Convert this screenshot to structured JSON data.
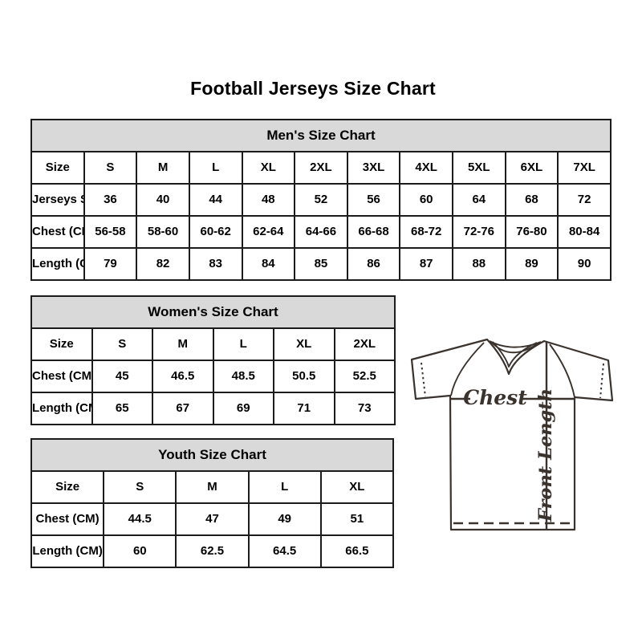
{
  "page": {
    "title": "Football Jerseys Size Chart"
  },
  "tables": [
    {
      "title": "Men's Size Chart",
      "rows": [
        [
          "Size",
          "S",
          "M",
          "L",
          "XL",
          "2XL",
          "3XL",
          "4XL",
          "5XL",
          "6XL",
          "7XL"
        ],
        [
          "Jerseys Size",
          "36",
          "40",
          "44",
          "48",
          "52",
          "56",
          "60",
          "64",
          "68",
          "72"
        ],
        [
          "Chest (CM)",
          "56-58",
          "58-60",
          "60-62",
          "62-64",
          "64-66",
          "66-68",
          "68-72",
          "72-76",
          "76-80",
          "80-84"
        ],
        [
          "Length (CM)",
          "79",
          "82",
          "83",
          "84",
          "85",
          "86",
          "87",
          "88",
          "89",
          "90"
        ]
      ]
    },
    {
      "title": "Women's Size Chart",
      "rows": [
        [
          "Size",
          "S",
          "M",
          "L",
          "XL",
          "2XL"
        ],
        [
          "Chest (CM)",
          "45",
          "46.5",
          "48.5",
          "50.5",
          "52.5"
        ],
        [
          "Length (CM)",
          "65",
          "67",
          "69",
          "71",
          "73"
        ]
      ]
    },
    {
      "title": "Youth Size Chart",
      "rows": [
        [
          "Size",
          "S",
          "M",
          "L",
          "XL"
        ],
        [
          "Chest (CM)",
          "44.5",
          "47",
          "49",
          "51"
        ],
        [
          "Length (CM)",
          "60",
          "62.5",
          "64.5",
          "66.5"
        ]
      ]
    }
  ],
  "diagram": {
    "chest_label": "Chest",
    "front_length_label": "Front Length"
  },
  "colors": {
    "header_bg": "#d9d9d9",
    "table_border": "#1c1c1c",
    "text": "#000000",
    "diagram_stroke": "#3a322d"
  }
}
